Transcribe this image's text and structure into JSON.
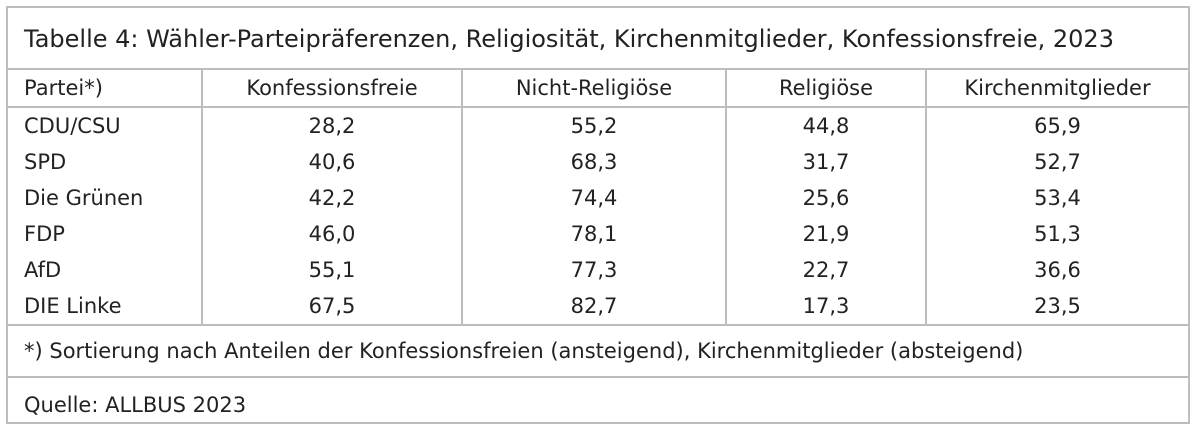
{
  "title": "Tabelle 4: Wähler-Parteipräferenzen, Religiosität, Kirchenmitglieder, Konfessionsfreie, 2023",
  "columns": [
    "Partei*)",
    "Konfessionsfreie",
    "Nicht-Religiöse",
    "Religiöse",
    "Kirchenmitglieder"
  ],
  "rows": [
    [
      "CDU/CSU",
      "28,2",
      "55,2",
      "44,8",
      "65,9"
    ],
    [
      "SPD",
      "40,6",
      "68,3",
      "31,7",
      "52,7"
    ],
    [
      "Die Grünen",
      "42,2",
      "74,4",
      "25,6",
      "53,4"
    ],
    [
      "FDP",
      "46,0",
      "78,1",
      "21,9",
      "51,3"
    ],
    [
      "AfD",
      "55,1",
      "77,3",
      "22,7",
      "36,6"
    ],
    [
      "DIE Linke",
      "67,5",
      "82,7",
      "17,3",
      "23,5"
    ]
  ],
  "footnote": "*) Sortierung nach Anteilen der Konfessionsfreien (ansteigend), Kirchenmitglieder (absteigend)",
  "source": "Quelle: ALLBUS 2023"
}
